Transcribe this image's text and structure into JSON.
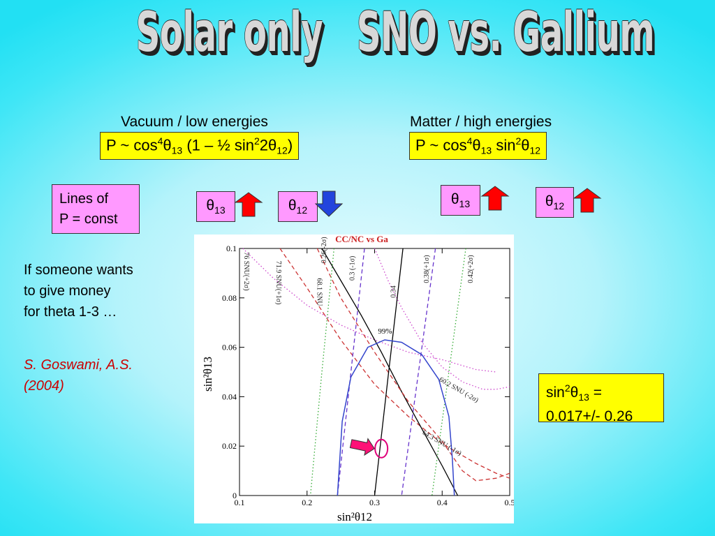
{
  "slide": {
    "title": "Solar only   SNO vs. Gallium",
    "left_heading": "Vacuum / low energies",
    "right_heading": "Matter / high energies",
    "left_formula": {
      "p": "P ~ cos",
      "e1": "4",
      "t1": "θ",
      "s1": "13",
      "mid": " (1 – ½ sin",
      "e2": "2",
      "mid2": "2",
      "t2": "θ",
      "s2": "12",
      "end": ")"
    },
    "right_formula": {
      "p": "P ~ cos",
      "e1": "4",
      "t1": "θ",
      "s1": "13",
      "mid": " sin",
      "e2": "2",
      "t2": "θ",
      "s2": "12"
    },
    "lines_box": {
      "line1": "Lines of",
      "line2": "P = const"
    },
    "theta_badges": [
      {
        "sym": "θ",
        "sub": "13",
        "arrow": "up",
        "color": "#ff0000"
      },
      {
        "sym": "θ",
        "sub": "12",
        "arrow": "down",
        "color": "#2244dd"
      },
      {
        "sym": "θ",
        "sub": "13",
        "arrow": "up",
        "color": "#ff0000"
      },
      {
        "sym": "θ",
        "sub": "12",
        "arrow": "up",
        "color": "#ff0000"
      }
    ],
    "note": {
      "line1": "If someone wants",
      "line2": "to give money",
      "line3": "for theta 1-3 …"
    },
    "reference": {
      "line1": "S. Goswami, A.S.",
      "line2": "(2004)"
    },
    "result": {
      "pre": "sin",
      "e": "2",
      "t": "θ",
      "s": "13",
      "post": " =",
      "value": "0.017+/- 0.26"
    }
  },
  "chart_data": {
    "type": "line",
    "title": "CC/NC vs Ga",
    "xlabel": "sin²θ12",
    "ylabel": "sin²θ13",
    "xlim": [
      0.1,
      0.5
    ],
    "ylim": [
      0,
      0.1
    ],
    "x_ticks": [
      "0.1",
      "0.2",
      "0.3",
      "0.4",
      "0.5"
    ],
    "y_ticks": [
      "0",
      "0.02",
      "0.04",
      "0.06",
      "0.08",
      "0.1"
    ],
    "contour_label": "99%",
    "curve_labels": [
      {
        "text": "76 SNU(+2σ)",
        "family": "Ga",
        "color": "#cc44cc",
        "x": 0.107,
        "y": 0.0985
      },
      {
        "text": "71.9 SNU(+1σ)",
        "family": "Ga",
        "color": "#cc3333",
        "x": 0.155,
        "y": 0.095
      },
      {
        "text": "68.1 SNU",
        "family": "Ga",
        "color": "#000000",
        "x": 0.215,
        "y": 0.088
      },
      {
        "text": "0.26(-2σ)",
        "family": "CC/NC",
        "color": "#33aa33",
        "x": 0.228,
        "y": 0.094
      },
      {
        "text": "0.3 (-1σ)",
        "family": "CC/NC",
        "color": "#6633cc",
        "x": 0.27,
        "y": 0.087
      },
      {
        "text": "0.34",
        "family": "CC/NC",
        "color": "#000000",
        "x": 0.331,
        "y": 0.08
      },
      {
        "text": "0.38(+1σ)",
        "family": "CC/NC",
        "color": "#6633cc",
        "x": 0.38,
        "y": 0.086
      },
      {
        "text": "0.42(+2σ)",
        "family": "CC/NC",
        "color": "#33aa33",
        "x": 0.445,
        "y": 0.086
      },
      {
        "text": "60.2 SNU (-2σ)",
        "family": "Ga",
        "color": "#cc44cc",
        "x": 0.395,
        "y": 0.0465
      },
      {
        "text": "64.3 SNU (-1σ)",
        "family": "Ga",
        "color": "#cc3333",
        "x": 0.37,
        "y": 0.025
      }
    ],
    "curves": [
      {
        "name": "76 SNU(+2σ)",
        "color": "#cc44cc",
        "style": "dot",
        "points": [
          [
            0.105,
            0.1
          ],
          [
            0.15,
            0.088
          ],
          [
            0.2,
            0.077
          ],
          [
            0.25,
            0.069
          ],
          [
            0.3,
            0.063
          ],
          [
            0.35,
            0.058
          ],
          [
            0.4,
            0.055
          ],
          [
            0.45,
            0.051
          ],
          [
            0.48,
            0.05
          ]
        ]
      },
      {
        "name": "71.9 SNU(+1σ)",
        "color": "#cc3333",
        "style": "dash",
        "points": [
          [
            0.16,
            0.1
          ],
          [
            0.2,
            0.084
          ],
          [
            0.25,
            0.063
          ],
          [
            0.3,
            0.045
          ],
          [
            0.35,
            0.032
          ],
          [
            0.4,
            0.021
          ],
          [
            0.45,
            0.013
          ],
          [
            0.48,
            0.009
          ],
          [
            0.5,
            0.007
          ]
        ]
      },
      {
        "name": "68.1 SNU",
        "color": "#000000",
        "style": "solid",
        "points": [
          [
            0.222,
            0.1
          ],
          [
            0.25,
            0.087
          ],
          [
            0.28,
            0.073
          ],
          [
            0.31,
            0.058
          ],
          [
            0.34,
            0.042
          ],
          [
            0.37,
            0.027
          ],
          [
            0.4,
            0.012
          ],
          [
            0.423,
            0
          ]
        ]
      },
      {
        "name": "60.2 SNU (-2σ)",
        "color": "#cc44cc",
        "style": "dot",
        "points": [
          [
            0.3,
            0.1
          ],
          [
            0.32,
            0.087
          ],
          [
            0.34,
            0.076
          ],
          [
            0.37,
            0.062
          ],
          [
            0.4,
            0.052
          ],
          [
            0.43,
            0.046
          ],
          [
            0.46,
            0.043
          ],
          [
            0.48,
            0.043
          ],
          [
            0.5,
            0.044
          ]
        ]
      },
      {
        "name": "64.3 SNU (-1σ)",
        "color": "#cc3333",
        "style": "dash",
        "points": [
          [
            0.215,
            0.1
          ],
          [
            0.25,
            0.08
          ],
          [
            0.3,
            0.058
          ],
          [
            0.35,
            0.038
          ],
          [
            0.4,
            0.022
          ],
          [
            0.43,
            0.01
          ],
          [
            0.45,
            0.006
          ],
          [
            0.48,
            0.007
          ],
          [
            0.5,
            0.009
          ]
        ]
      },
      {
        "name": "0.26(-2σ)",
        "color": "#33aa33",
        "style": "dot",
        "points": [
          [
            0.24,
            0.1
          ],
          [
            0.222,
            0.05
          ],
          [
            0.205,
            0
          ]
        ]
      },
      {
        "name": "0.3 (-1σ)",
        "color": "#6633cc",
        "style": "dash",
        "points": [
          [
            0.285,
            0.1
          ],
          [
            0.265,
            0.05
          ],
          [
            0.245,
            0
          ]
        ]
      },
      {
        "name": "0.34",
        "color": "#000000",
        "style": "solid",
        "points": [
          [
            0.342,
            0.1
          ],
          [
            0.32,
            0.048
          ],
          [
            0.3,
            0
          ]
        ]
      },
      {
        "name": "0.38(+1σ)",
        "color": "#6633cc",
        "style": "dash",
        "points": [
          [
            0.39,
            0.1
          ],
          [
            0.365,
            0.05
          ],
          [
            0.34,
            0
          ]
        ]
      },
      {
        "name": "0.42(+2σ)",
        "color": "#33aa33",
        "style": "dot",
        "points": [
          [
            0.435,
            0.1
          ],
          [
            0.41,
            0.05
          ],
          [
            0.385,
            0
          ]
        ]
      }
    ],
    "contour": {
      "name": "99%",
      "color": "#3344cc",
      "points": [
        [
          0.245,
          0
        ],
        [
          0.252,
          0.03
        ],
        [
          0.265,
          0.048
        ],
        [
          0.29,
          0.06
        ],
        [
          0.315,
          0.063
        ],
        [
          0.34,
          0.062
        ],
        [
          0.37,
          0.057
        ],
        [
          0.395,
          0.047
        ],
        [
          0.41,
          0.032
        ],
        [
          0.415,
          0.015
        ],
        [
          0.418,
          0
        ]
      ]
    },
    "best_fit": {
      "x": 0.31,
      "y": 0.019
    },
    "arrow_to_fit": {
      "from_x": 0.265,
      "from_y": 0.021
    }
  }
}
